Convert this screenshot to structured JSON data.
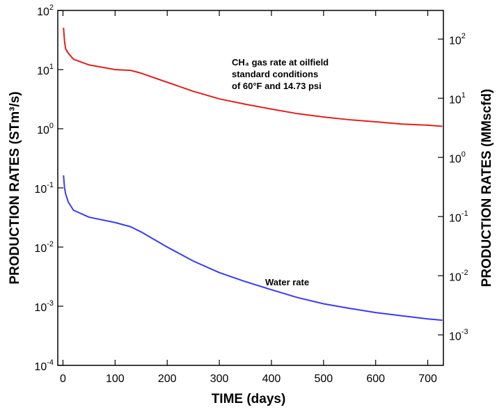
{
  "chart_data": {
    "type": "line",
    "xlabel": "TIME (days)",
    "ylabel": "PRODUCTION RATES (STm³/s)",
    "y2label": "PRODUCTION RATES (MMscfd)",
    "annotations": [
      "CH₄ gas rate at oilfield",
      "standard conditions",
      "of 60°F and 14.73 psi",
      "Water rate"
    ],
    "x": [
      1,
      3,
      5,
      10,
      20,
      50,
      100,
      130,
      150,
      200,
      250,
      300,
      350,
      400,
      450,
      500,
      550,
      600,
      650,
      700,
      728
    ],
    "series": [
      {
        "name": "CH₄ gas rate",
        "color": "#e0201c",
        "values": [
          51,
          30,
          22.5,
          19,
          15,
          12,
          10,
          9.7,
          8.7,
          6.1,
          4.3,
          3.2,
          2.6,
          2.15,
          1.8,
          1.58,
          1.42,
          1.31,
          1.2,
          1.15,
          1.1
        ]
      },
      {
        "name": "Water rate",
        "color": "#3a3af0",
        "values": [
          0.163,
          0.1,
          0.08,
          0.058,
          0.042,
          0.032,
          0.026,
          0.022,
          0.018,
          0.01,
          0.0058,
          0.0037,
          0.0026,
          0.0019,
          0.0014,
          0.0011,
          0.00092,
          0.00078,
          0.00069,
          0.00061,
          0.00058
        ]
      }
    ],
    "xlim": [
      -10,
      730
    ],
    "xticks": [
      0,
      100,
      200,
      300,
      400,
      500,
      600,
      700
    ],
    "yscale": "log",
    "ylim": [
      0.0001,
      100
    ],
    "yticks": [
      {
        "value": 0.0001,
        "label": "10^-4"
      },
      {
        "value": 0.001,
        "label": "10^-3"
      },
      {
        "value": 0.01,
        "label": "10^-2"
      },
      {
        "value": 0.1,
        "label": "10^-1"
      },
      {
        "value": 1,
        "label": "10^0"
      },
      {
        "value": 10,
        "label": "10^1"
      },
      {
        "value": 100,
        "label": "10^2"
      }
    ],
    "y2scale": "log",
    "y2lim": [
      0.000305,
      305
    ],
    "y2ticks": [
      {
        "value": 0.001,
        "label": "10^-3"
      },
      {
        "value": 0.01,
        "label": "10^-2"
      },
      {
        "value": 0.1,
        "label": "10^-1"
      },
      {
        "value": 1,
        "label": "10^0"
      },
      {
        "value": 10,
        "label": "10^1"
      },
      {
        "value": 100,
        "label": "10^2"
      }
    ],
    "grid": false
  }
}
